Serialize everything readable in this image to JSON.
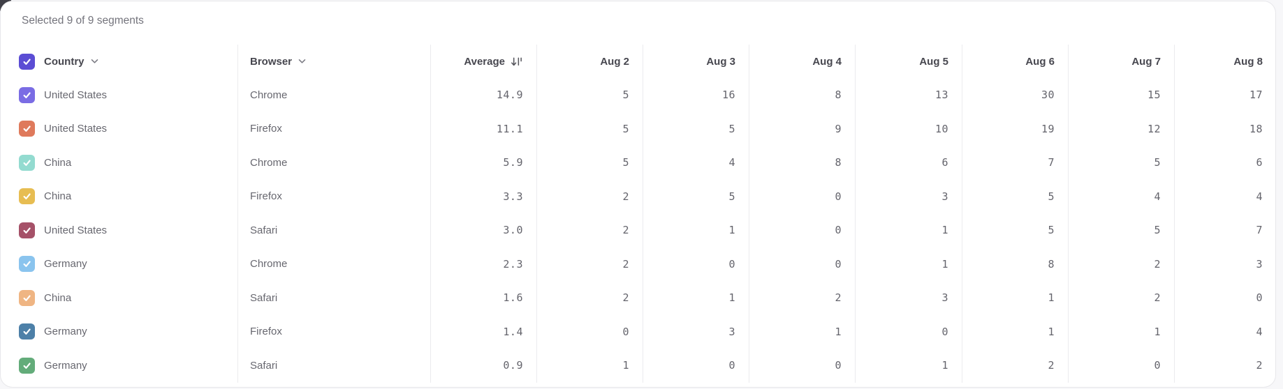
{
  "header": {
    "selected_summary": "Selected 9 of 9 segments"
  },
  "table": {
    "columns": {
      "country_label": "Country",
      "browser_label": "Browser",
      "average_label": "Average",
      "dates": [
        "Aug 2",
        "Aug 3",
        "Aug 4",
        "Aug 5",
        "Aug 6",
        "Aug 7",
        "Aug 8"
      ]
    },
    "header_checkbox": {
      "checked": true,
      "color": "#5b4dd4"
    },
    "rows": [
      {
        "country": "United States",
        "browser": "Chrome",
        "average": "14.9",
        "values": [
          5,
          16,
          8,
          13,
          30,
          15,
          17
        ],
        "checked": true,
        "checkbox_color": "#7a6ce4"
      },
      {
        "country": "United States",
        "browser": "Firefox",
        "average": "11.1",
        "values": [
          5,
          5,
          9,
          10,
          19,
          12,
          18
        ],
        "checked": true,
        "checkbox_color": "#df7a5c"
      },
      {
        "country": "China",
        "browser": "Chrome",
        "average": "5.9",
        "values": [
          5,
          4,
          8,
          6,
          7,
          5,
          6
        ],
        "checked": true,
        "checkbox_color": "#93dbd0"
      },
      {
        "country": "China",
        "browser": "Firefox",
        "average": "3.3",
        "values": [
          2,
          5,
          0,
          3,
          5,
          4,
          4
        ],
        "checked": true,
        "checkbox_color": "#e7bd52"
      },
      {
        "country": "United States",
        "browser": "Safari",
        "average": "3.0",
        "values": [
          2,
          1,
          0,
          1,
          5,
          5,
          7
        ],
        "checked": true,
        "checkbox_color": "#a55168"
      },
      {
        "country": "Germany",
        "browser": "Chrome",
        "average": "2.3",
        "values": [
          2,
          0,
          0,
          1,
          8,
          2,
          3
        ],
        "checked": true,
        "checkbox_color": "#8ac4ee"
      },
      {
        "country": "China",
        "browser": "Safari",
        "average": "1.6",
        "values": [
          2,
          1,
          2,
          3,
          1,
          2,
          0
        ],
        "checked": true,
        "checkbox_color": "#efb583"
      },
      {
        "country": "Germany",
        "browser": "Firefox",
        "average": "1.4",
        "values": [
          0,
          3,
          1,
          0,
          1,
          1,
          4
        ],
        "checked": true,
        "checkbox_color": "#4d80a8"
      },
      {
        "country": "Germany",
        "browser": "Safari",
        "average": "0.9",
        "values": [
          1,
          0,
          0,
          1,
          2,
          0,
          2
        ],
        "checked": true,
        "checkbox_color": "#63ac7a"
      }
    ]
  },
  "icons": {
    "sort": "sort-descending-icon",
    "chevron": "chevron-down-icon",
    "check": "check-icon"
  },
  "colors": {
    "card_background": "#ffffff",
    "divider": "#ebebee",
    "header_text": "#47474f",
    "body_text": "#67676f",
    "number_text": "#64646c",
    "summary_text": "#74747c"
  }
}
